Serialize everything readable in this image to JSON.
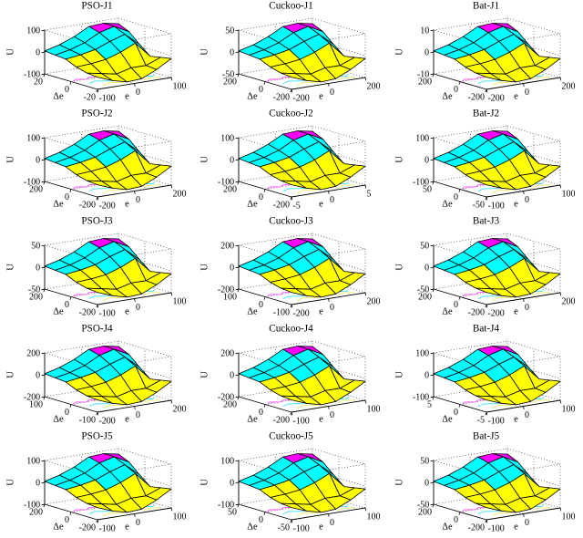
{
  "figure": {
    "background": "#ffffff",
    "grid": {
      "rows": 5,
      "cols": 3
    },
    "axis_labels": {
      "z": "U",
      "y": "Δe",
      "x": "e"
    },
    "colors": {
      "surface_low": "#ffff00",
      "surface_mid": "#00ffff",
      "surface_high": "#ff00ff",
      "mesh_edge": "#000000",
      "axis": "#000000",
      "dotted": "#333333",
      "text": "#000000",
      "contour_magenta": "#ff4df0",
      "contour_cyan": "#45e2f5",
      "contour_yellow": "#f0ec68",
      "background": "#ffffff"
    }
  },
  "chart_data": {
    "type": "surface",
    "subplot_grid": {
      "rows": 5,
      "cols": 3
    },
    "axes": {
      "x": "e",
      "y": "Δe",
      "z": "U"
    },
    "legend_position": "none",
    "grid_on": true,
    "surface_note": "All 15 subplots show the same characteristic fuzzy-controller control surface U(e,Δe); z values below are normalized to the |U| axis maximum of each subplot. Rows are ordered from Δe = +max (back) to Δe = -max (front); columns from e = -max to e = +max.",
    "shared_surface_z_normalized": [
      [
        0.05,
        0.25,
        0.55,
        0.95,
        1.0,
        0.85
      ],
      [
        0.0,
        0.15,
        0.4,
        0.8,
        1.0,
        0.6
      ],
      [
        -0.05,
        0.05,
        0.2,
        0.5,
        0.75,
        0.1
      ],
      [
        -0.3,
        -0.25,
        -0.15,
        0.1,
        0.45,
        -0.35
      ],
      [
        -0.45,
        -0.6,
        -0.75,
        -0.55,
        -0.55,
        -0.25
      ],
      [
        -0.5,
        -0.8,
        -1.0,
        -0.95,
        -0.6,
        -0.15
      ]
    ],
    "plots": [
      {
        "title": "PSO-J1",
        "u_ticks": [
          100,
          0,
          -100
        ],
        "de_ticks": [
          20,
          0,
          -20
        ],
        "e_ticks": [
          -100,
          0,
          100
        ]
      },
      {
        "title": "Cuckoo-J1",
        "u_ticks": [
          50,
          0,
          -50
        ],
        "de_ticks": [
          200,
          0,
          -200
        ],
        "e_ticks": [
          -200,
          0,
          200
        ]
      },
      {
        "title": "Bat-J1",
        "u_ticks": [
          10,
          0,
          -10
        ],
        "de_ticks": [
          200,
          0,
          -200
        ],
        "e_ticks": [
          -200,
          0,
          200
        ]
      },
      {
        "title": "PSO-J2",
        "u_ticks": [
          100,
          0,
          -100
        ],
        "de_ticks": [
          200,
          0,
          -200
        ],
        "e_ticks": [
          -200,
          0,
          200
        ]
      },
      {
        "title": "Cuckoo-J2",
        "u_ticks": [
          100,
          0,
          -100
        ],
        "de_ticks": [
          200,
          0,
          -200
        ],
        "e_ticks": [
          -5,
          0,
          5
        ]
      },
      {
        "title": "Bat-J2",
        "u_ticks": [
          100,
          0,
          -100
        ],
        "de_ticks": [
          50,
          0,
          -50
        ],
        "e_ticks": [
          -100,
          0,
          100
        ]
      },
      {
        "title": "PSO-J3",
        "u_ticks": [
          50,
          0,
          -50
        ],
        "de_ticks": [
          200,
          0,
          -200
        ],
        "e_ticks": [
          -100,
          0,
          100
        ]
      },
      {
        "title": "Cuckoo-J3",
        "u_ticks": [
          200,
          0,
          -200
        ],
        "de_ticks": [
          100,
          0,
          -100
        ],
        "e_ticks": [
          -200,
          0,
          200
        ]
      },
      {
        "title": "Bat-J3",
        "u_ticks": [
          50,
          0,
          -50
        ],
        "de_ticks": [
          200,
          0,
          -200
        ],
        "e_ticks": [
          -200,
          0,
          200
        ]
      },
      {
        "title": "PSO-J4",
        "u_ticks": [
          200,
          0,
          -200
        ],
        "de_ticks": [
          100,
          0,
          -100
        ],
        "e_ticks": [
          -200,
          0,
          200
        ]
      },
      {
        "title": "Cuckoo-J4",
        "u_ticks": [
          200,
          0,
          -200
        ],
        "de_ticks": [
          200,
          0,
          -200
        ],
        "e_ticks": [
          -100,
          0,
          100
        ]
      },
      {
        "title": "Bat-J4",
        "u_ticks": [
          100,
          0,
          -100
        ],
        "de_ticks": [
          5,
          0,
          -5
        ],
        "e_ticks": [
          -100,
          0,
          100
        ]
      },
      {
        "title": "PSO-J5",
        "u_ticks": [
          100,
          0,
          -100
        ],
        "de_ticks": [
          200,
          0,
          -200
        ],
        "e_ticks": [
          -100,
          0,
          100
        ]
      },
      {
        "title": "Cuckoo-J5",
        "u_ticks": [
          100,
          0,
          -100
        ],
        "de_ticks": [
          50,
          0,
          -50
        ],
        "e_ticks": [
          -100,
          0,
          100
        ]
      },
      {
        "title": "Bat-J5",
        "u_ticks": [
          50,
          0,
          -50
        ],
        "de_ticks": [
          200,
          0,
          -200
        ],
        "e_ticks": [
          -100,
          0,
          100
        ]
      }
    ]
  }
}
